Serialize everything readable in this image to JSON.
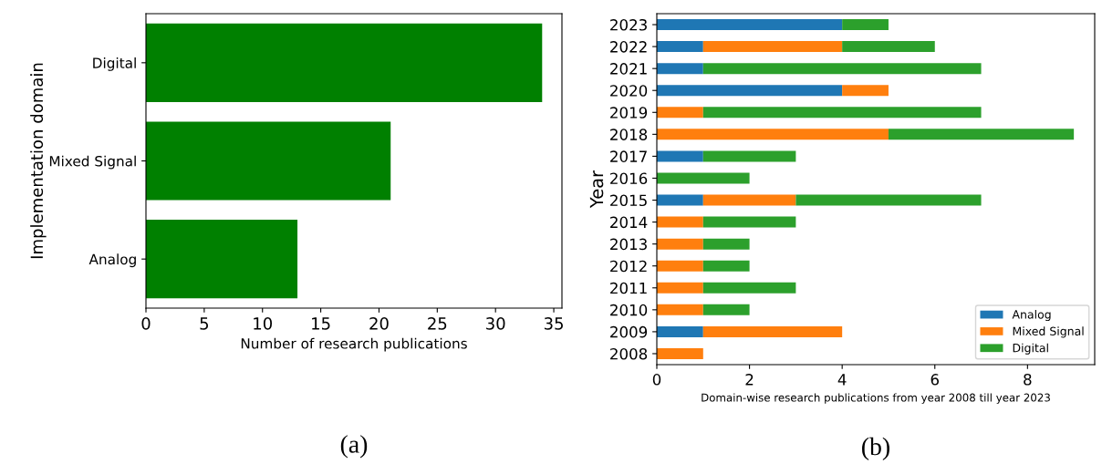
{
  "chart_data": [
    {
      "type": "bar",
      "orientation": "horizontal",
      "categories": [
        "Digital",
        "Mixed Signal",
        "Analog"
      ],
      "values": [
        34,
        21,
        13
      ],
      "color": "#008000",
      "xlabel": "Number of research publications",
      "ylabel": "Implementation domain",
      "xlim": [
        0,
        35.7
      ],
      "xticks": [
        0,
        5,
        10,
        15,
        20,
        25,
        30,
        35
      ],
      "grid": false,
      "annotations": [
        "(a)"
      ]
    },
    {
      "type": "bar",
      "orientation": "horizontal",
      "stacked": true,
      "categories": [
        "2023",
        "2022",
        "2021",
        "2020",
        "2019",
        "2018",
        "2017",
        "2016",
        "2015",
        "2014",
        "2013",
        "2012",
        "2011",
        "2010",
        "2009",
        "2008"
      ],
      "series": [
        {
          "name": "Analog",
          "color": "#1f77b4",
          "values": [
            4,
            1,
            1,
            4,
            0,
            0,
            1,
            0,
            1,
            0,
            0,
            0,
            0,
            0,
            1,
            0
          ]
        },
        {
          "name": "Mixed Signal",
          "color": "#ff7f0e",
          "values": [
            0,
            3,
            0,
            1,
            1,
            5,
            0,
            0,
            2,
            1,
            1,
            1,
            1,
            1,
            3,
            1
          ]
        },
        {
          "name": "Digital",
          "color": "#2ca02c",
          "values": [
            1,
            2,
            6,
            0,
            6,
            4,
            2,
            2,
            4,
            2,
            1,
            1,
            2,
            1,
            0,
            0
          ]
        }
      ],
      "xlabel": "Domain-wise research publications from year 2008 till year 2023",
      "ylabel": "Year",
      "xlim": [
        0,
        9.45
      ],
      "xticks": [
        0,
        2,
        4,
        6,
        8
      ],
      "grid": false,
      "legend": "bottom right",
      "annotations": [
        "(b)"
      ]
    }
  ]
}
